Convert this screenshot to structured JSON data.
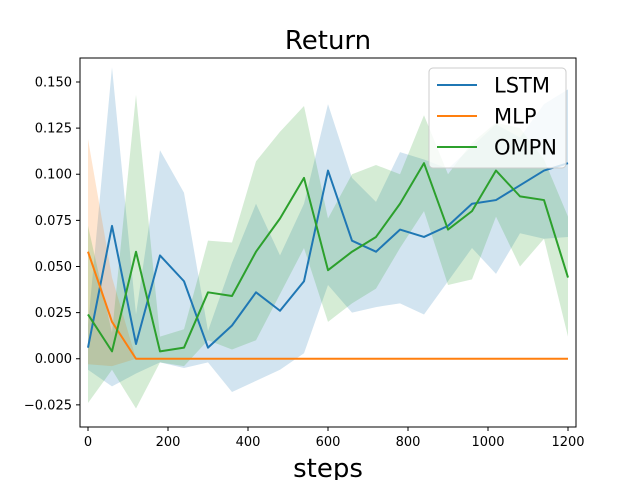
{
  "chart_data": {
    "type": "line",
    "title": "Return",
    "xlabel": "steps",
    "ylabel": "",
    "xlim": [
      -20,
      1220
    ],
    "ylim": [
      -0.037,
      0.163
    ],
    "xticks": [
      0,
      200,
      400,
      600,
      800,
      1000,
      1200
    ],
    "yticks": [
      -0.025,
      0.0,
      0.025,
      0.05,
      0.075,
      0.1,
      0.125,
      0.15
    ],
    "xtick_labels": [
      "0",
      "200",
      "400",
      "600",
      "800",
      "1000",
      "1200"
    ],
    "ytick_labels": [
      "−0.025",
      "0.000",
      "0.025",
      "0.050",
      "0.075",
      "0.100",
      "0.125",
      "0.150"
    ],
    "legend_position": "top-right",
    "grid": false,
    "series": [
      {
        "name": "LSTM",
        "color": "#1f77b4",
        "x": [
          0,
          60,
          120,
          180,
          240,
          300,
          360,
          420,
          480,
          540,
          600,
          660,
          720,
          780,
          840,
          900,
          960,
          1020,
          1080,
          1140,
          1200
        ],
        "y": [
          0.006,
          0.072,
          0.008,
          0.056,
          0.042,
          0.006,
          0.018,
          0.036,
          0.026,
          0.042,
          0.102,
          0.064,
          0.058,
          0.07,
          0.066,
          0.072,
          0.084,
          0.086,
          0.094,
          0.102,
          0.106
        ],
        "lower": [
          -0.006,
          -0.015,
          -0.008,
          -0.002,
          -0.005,
          -0.002,
          -0.018,
          -0.012,
          -0.006,
          0.003,
          0.04,
          0.025,
          0.028,
          0.03,
          0.024,
          0.042,
          0.06,
          0.046,
          0.068,
          0.065,
          0.066
        ],
        "upper": [
          0.018,
          0.158,
          0.024,
          0.113,
          0.09,
          0.015,
          0.052,
          0.084,
          0.056,
          0.084,
          0.138,
          0.098,
          0.085,
          0.112,
          0.108,
          0.103,
          0.115,
          0.127,
          0.12,
          0.138,
          0.146
        ]
      },
      {
        "name": "MLP",
        "color": "#ff7f0e",
        "x": [
          0,
          60,
          120,
          180,
          240,
          300,
          360,
          420,
          480,
          540,
          600,
          660,
          720,
          780,
          840,
          900,
          960,
          1020,
          1080,
          1140,
          1200
        ],
        "y": [
          0.058,
          0.02,
          0.0,
          0.0,
          0.0,
          0.0,
          0.0,
          0.0,
          0.0,
          0.0,
          0.0,
          0.0,
          0.0,
          0.0,
          0.0,
          0.0,
          0.0,
          0.0,
          0.0,
          0.0,
          0.0
        ],
        "lower": [
          -0.003,
          -0.004,
          0.0,
          0.0,
          0.0,
          0.0,
          0.0,
          0.0,
          0.0,
          0.0,
          0.0,
          0.0,
          0.0,
          0.0,
          0.0,
          0.0,
          0.0,
          0.0,
          0.0,
          0.0,
          0.0
        ],
        "upper": [
          0.119,
          0.044,
          0.0,
          0.0,
          0.0,
          0.0,
          0.0,
          0.0,
          0.0,
          0.0,
          0.0,
          0.0,
          0.0,
          0.0,
          0.0,
          0.0,
          0.0,
          0.0,
          0.0,
          0.0,
          0.0
        ]
      },
      {
        "name": "OMPN",
        "color": "#2ca02c",
        "x": [
          0,
          60,
          120,
          180,
          240,
          300,
          360,
          420,
          480,
          540,
          600,
          660,
          720,
          780,
          840,
          900,
          960,
          1020,
          1080,
          1140,
          1200
        ],
        "y": [
          0.024,
          0.004,
          0.058,
          0.004,
          0.006,
          0.036,
          0.034,
          0.058,
          0.076,
          0.098,
          0.048,
          0.058,
          0.066,
          0.084,
          0.106,
          0.07,
          0.08,
          0.102,
          0.088,
          0.086,
          0.044
        ],
        "lower": [
          -0.024,
          -0.006,
          -0.027,
          -0.002,
          -0.004,
          0.01,
          0.005,
          0.01,
          0.035,
          0.06,
          0.02,
          0.03,
          0.038,
          0.06,
          0.08,
          0.04,
          0.043,
          0.077,
          0.05,
          0.065,
          0.012
        ],
        "upper": [
          0.072,
          0.014,
          0.143,
          0.012,
          0.016,
          0.064,
          0.063,
          0.107,
          0.123,
          0.137,
          0.076,
          0.1,
          0.105,
          0.1,
          0.132,
          0.1,
          0.117,
          0.128,
          0.125,
          0.108,
          0.077
        ]
      }
    ]
  }
}
